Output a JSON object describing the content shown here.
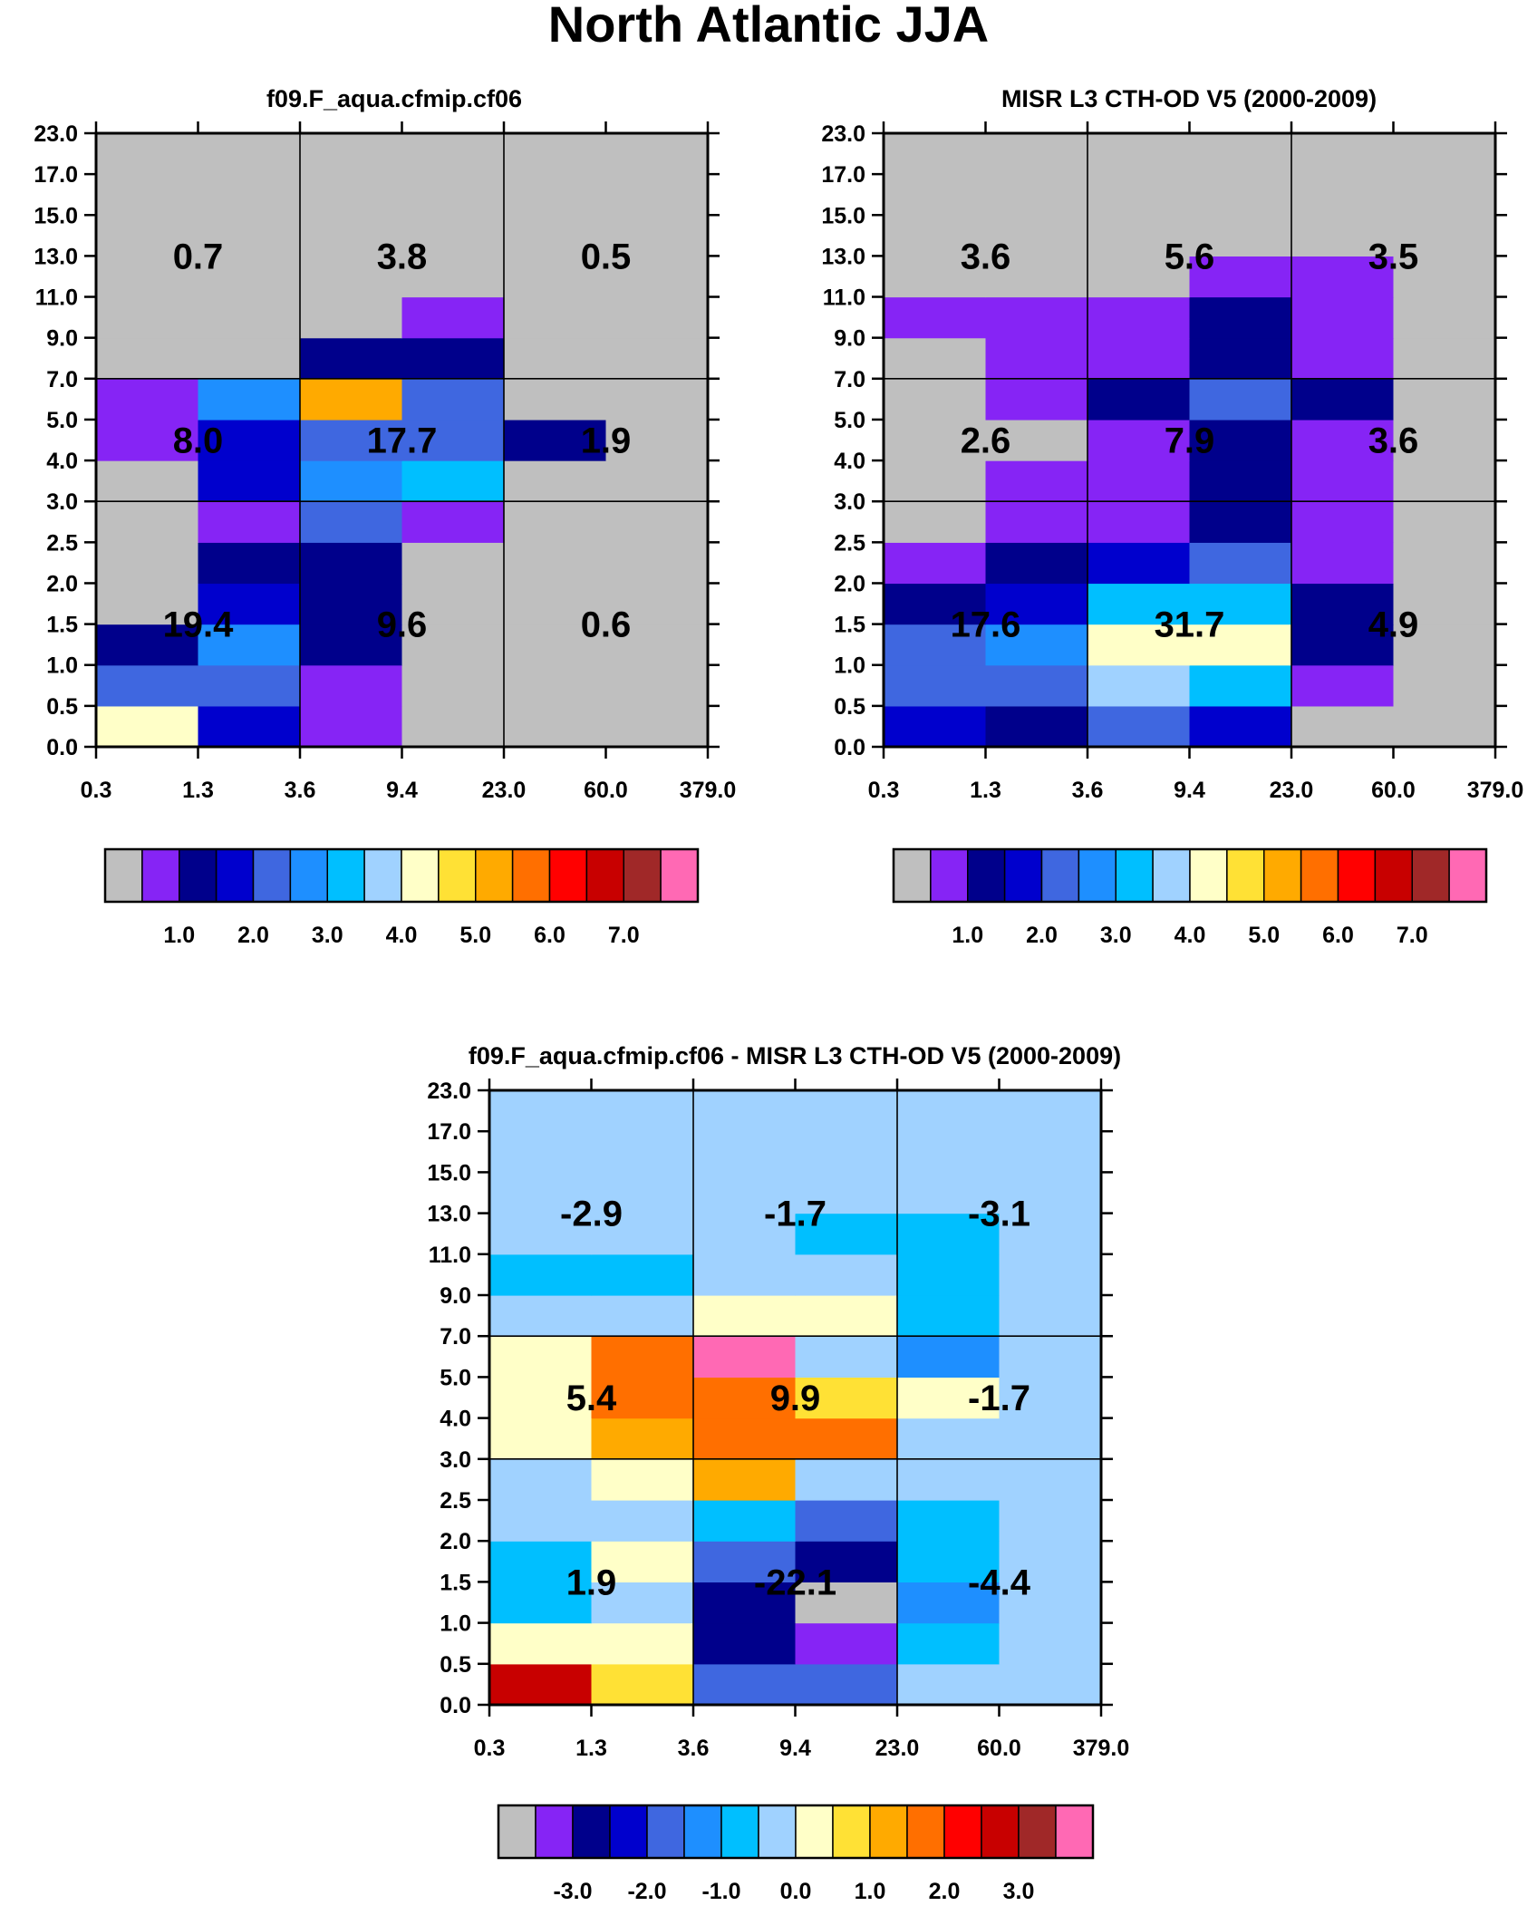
{
  "figure": {
    "title": "North Atlantic JJA"
  },
  "colors": {
    "palette": [
      "#BFBFBF",
      "#8624F5",
      "#00008B",
      "#0000CD",
      "#3F67E0",
      "#1E8FFF",
      "#00BFFF",
      "#A0D2FF",
      "#FFFFC8",
      "#FFE135",
      "#FFAA00",
      "#FF6F00",
      "#FF0000",
      "#C80000",
      "#A02828",
      "#FF69B4"
    ],
    "frame": "#000000",
    "background": "#ffffff"
  },
  "axes": {
    "x_ticks": [
      "0.3",
      "1.3",
      "3.6",
      "9.4",
      "23.0",
      "60.0",
      "379.0"
    ],
    "y_ticks": [
      "0.0",
      "0.5",
      "1.0",
      "1.5",
      "2.0",
      "2.5",
      "3.0",
      "4.0",
      "5.0",
      "7.0",
      "9.0",
      "11.0",
      "13.0",
      "15.0",
      "17.0",
      "23.0"
    ]
  },
  "chart_data": [
    {
      "type": "heatmap",
      "title": "f09.F_aqua.cfmip.cf06",
      "x_edges": [
        "0.3",
        "1.3",
        "3.6",
        "9.4",
        "23.0",
        "60.0",
        "379.0"
      ],
      "y_edges": [
        "0.0",
        "0.5",
        "1.0",
        "1.5",
        "2.0",
        "2.5",
        "3.0",
        "4.0",
        "5.0",
        "7.0",
        "9.0",
        "11.0",
        "13.0",
        "15.0",
        "17.0",
        "23.0"
      ],
      "cells_color_index_bottom_to_top": [
        [
          8,
          3,
          1,
          0,
          0,
          0
        ],
        [
          4,
          4,
          1,
          0,
          0,
          0
        ],
        [
          2,
          5,
          2,
          0,
          0,
          0
        ],
        [
          0,
          3,
          2,
          0,
          0,
          0
        ],
        [
          0,
          2,
          2,
          0,
          0,
          0
        ],
        [
          0,
          1,
          4,
          1,
          0,
          0
        ],
        [
          0,
          3,
          5,
          6,
          0,
          0
        ],
        [
          1,
          3,
          4,
          4,
          2,
          0
        ],
        [
          1,
          5,
          10,
          4,
          0,
          0
        ],
        [
          0,
          0,
          2,
          2,
          0,
          0
        ],
        [
          0,
          0,
          0,
          1,
          0,
          0
        ],
        [
          0,
          0,
          0,
          0,
          0,
          0
        ],
        [
          0,
          0,
          0,
          0,
          0,
          0
        ],
        [
          0,
          0,
          0,
          0,
          0,
          0
        ],
        [
          0,
          0,
          0,
          0,
          0,
          0
        ]
      ],
      "group_totals_bottom_to_top": [
        [
          "19.4",
          "9.6",
          "0.6"
        ],
        [
          "8.0",
          "17.7",
          "1.9"
        ],
        [
          "0.7",
          "3.8",
          "0.5"
        ]
      ],
      "colorbar_labels": [
        "1.0",
        "2.0",
        "3.0",
        "4.0",
        "5.0",
        "6.0",
        "7.0"
      ]
    },
    {
      "type": "heatmap",
      "title": "MISR L3 CTH-OD V5 (2000-2009)",
      "x_edges": [
        "0.3",
        "1.3",
        "3.6",
        "9.4",
        "23.0",
        "60.0",
        "379.0"
      ],
      "y_edges": [
        "0.0",
        "0.5",
        "1.0",
        "1.5",
        "2.0",
        "2.5",
        "3.0",
        "4.0",
        "5.0",
        "7.0",
        "9.0",
        "11.0",
        "13.0",
        "15.0",
        "17.0",
        "23.0"
      ],
      "cells_color_index_bottom_to_top": [
        [
          3,
          2,
          4,
          3,
          0,
          0
        ],
        [
          4,
          4,
          7,
          6,
          1,
          0
        ],
        [
          4,
          5,
          8,
          8,
          2,
          0
        ],
        [
          2,
          3,
          6,
          6,
          2,
          0
        ],
        [
          1,
          2,
          3,
          4,
          1,
          0
        ],
        [
          0,
          1,
          1,
          2,
          1,
          0
        ],
        [
          0,
          1,
          1,
          2,
          1,
          0
        ],
        [
          0,
          0,
          1,
          2,
          1,
          0
        ],
        [
          0,
          1,
          2,
          4,
          2,
          0
        ],
        [
          0,
          1,
          1,
          2,
          1,
          0
        ],
        [
          1,
          1,
          1,
          2,
          1,
          0
        ],
        [
          0,
          0,
          0,
          1,
          1,
          0
        ],
        [
          0,
          0,
          0,
          0,
          0,
          0
        ],
        [
          0,
          0,
          0,
          0,
          0,
          0
        ],
        [
          0,
          0,
          0,
          0,
          0,
          0
        ]
      ],
      "group_totals_bottom_to_top": [
        [
          "17.6",
          "31.7",
          "4.9"
        ],
        [
          "2.6",
          "7.9",
          "3.6"
        ],
        [
          "3.6",
          "5.6",
          "3.5"
        ]
      ],
      "colorbar_labels": [
        "1.0",
        "2.0",
        "3.0",
        "4.0",
        "5.0",
        "6.0",
        "7.0"
      ]
    },
    {
      "type": "heatmap",
      "title": "f09.F_aqua.cfmip.cf06 - MISR L3 CTH-OD V5 (2000-2009)",
      "x_edges": [
        "0.3",
        "1.3",
        "3.6",
        "9.4",
        "23.0",
        "60.0",
        "379.0"
      ],
      "y_edges": [
        "0.0",
        "0.5",
        "1.0",
        "1.5",
        "2.0",
        "2.5",
        "3.0",
        "4.0",
        "5.0",
        "7.0",
        "9.0",
        "11.0",
        "13.0",
        "15.0",
        "17.0",
        "23.0"
      ],
      "cells_color_index_bottom_to_top": [
        [
          13,
          9,
          4,
          4,
          7,
          7
        ],
        [
          8,
          8,
          2,
          1,
          6,
          7
        ],
        [
          6,
          7,
          2,
          0,
          5,
          7
        ],
        [
          6,
          8,
          4,
          2,
          6,
          7
        ],
        [
          7,
          7,
          6,
          4,
          6,
          7
        ],
        [
          7,
          8,
          10,
          7,
          7,
          7
        ],
        [
          8,
          10,
          11,
          11,
          7,
          7
        ],
        [
          8,
          11,
          11,
          9,
          8,
          7
        ],
        [
          8,
          11,
          15,
          7,
          5,
          7
        ],
        [
          7,
          7,
          8,
          8,
          6,
          7
        ],
        [
          6,
          6,
          7,
          7,
          6,
          7
        ],
        [
          7,
          7,
          7,
          6,
          6,
          7
        ],
        [
          7,
          7,
          7,
          7,
          7,
          7
        ],
        [
          7,
          7,
          7,
          7,
          7,
          7
        ],
        [
          7,
          7,
          7,
          7,
          7,
          7
        ]
      ],
      "group_totals_bottom_to_top": [
        [
          "1.9",
          "-22.1",
          "-4.4"
        ],
        [
          "5.4",
          "9.9",
          "-1.7"
        ],
        [
          "-2.9",
          "-1.7",
          "-3.1"
        ]
      ],
      "colorbar_labels": [
        "-3.0",
        "-2.0",
        "-1.0",
        "0.0",
        "1.0",
        "2.0",
        "3.0"
      ]
    }
  ]
}
